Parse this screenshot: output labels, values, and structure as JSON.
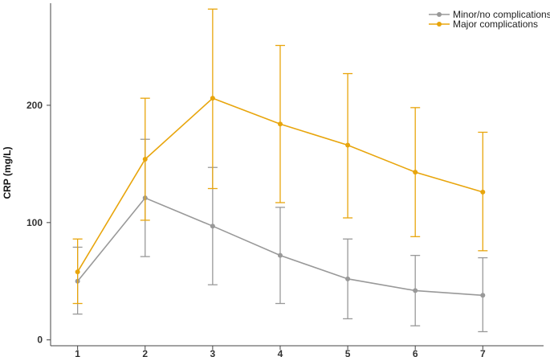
{
  "chart_data": {
    "type": "line",
    "title": "",
    "xlabel": "",
    "ylabel": "CRP (mg/L)",
    "x": [
      1,
      2,
      3,
      4,
      5,
      6,
      7
    ],
    "xlim": [
      0.6,
      7.9
    ],
    "ylim": [
      -5,
      287
    ],
    "yticks": [
      0,
      100,
      200
    ],
    "grid": false,
    "legend": "top-right",
    "series": [
      {
        "name": "Minor/no complications",
        "color": "#999999",
        "values": [
          50,
          121,
          97,
          72,
          52,
          42,
          38
        ],
        "error_low": [
          22,
          71,
          47,
          31,
          18,
          12,
          7
        ],
        "error_high": [
          79,
          171,
          147,
          113,
          86,
          72,
          70
        ]
      },
      {
        "name": "Major complications",
        "color": "#E8A50C",
        "values": [
          58,
          154,
          206,
          184,
          166,
          143,
          126
        ],
        "error_low": [
          31,
          102,
          129,
          117,
          104,
          88,
          76
        ],
        "error_high": [
          86,
          206,
          282,
          251,
          227,
          198,
          177
        ]
      }
    ]
  }
}
